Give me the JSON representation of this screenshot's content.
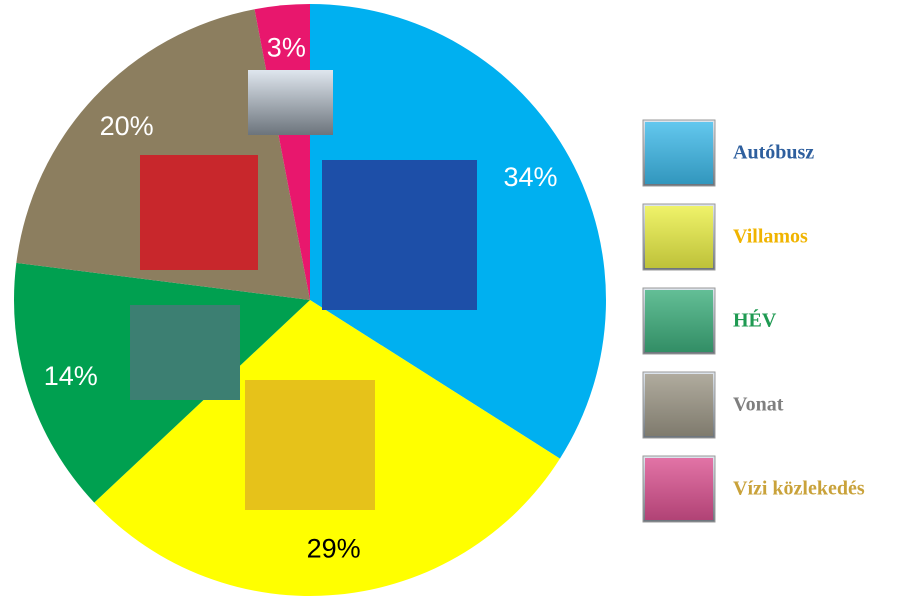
{
  "chart_data": {
    "type": "pie",
    "categories": [
      "Autóbusz",
      "Villamos",
      "HÉV",
      "Vonat",
      "Vízi közlekedés"
    ],
    "values": [
      34,
      29,
      14,
      20,
      3
    ],
    "value_labels": [
      "34%",
      "29%",
      "14%",
      "20%",
      "3%"
    ],
    "colors": [
      "#00b0f0",
      "#ffff00",
      "#00a050",
      "#8c7e5f",
      "#e8176d"
    ],
    "value_label_colors": [
      "#ffffff",
      "#000000",
      "#ffffff",
      "#ffffff",
      "#ffffff"
    ],
    "legend_text_colors": [
      "#2e5f9e",
      "#f0b400",
      "#1f9a52",
      "#7f7f7f",
      "#c9a23a"
    ],
    "legend": "right"
  }
}
